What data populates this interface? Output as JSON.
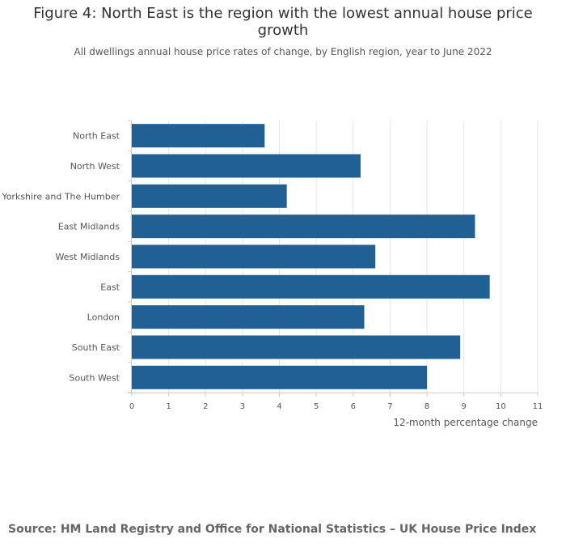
{
  "title": "Figure 4: North East is the region with the lowest annual house price growth",
  "subtitle": "All dwellings annual house price rates of change, by English region, year to June 2022",
  "source": "Source: HM Land Registry and Office for National Statistics – UK House Price Index",
  "colors": {
    "bar": "#206095",
    "grid": "#e6e6e6",
    "axis": "#cccccc",
    "text": "#555555"
  },
  "chart_data": {
    "type": "bar",
    "orientation": "horizontal",
    "categories": [
      "North East",
      "North West",
      "Yorkshire and The Humber",
      "East Midlands",
      "West Midlands",
      "East",
      "London",
      "South East",
      "South West"
    ],
    "values": [
      3.6,
      6.2,
      4.2,
      9.3,
      6.6,
      9.7,
      6.3,
      8.9,
      8.0
    ],
    "xlabel": "12-month percentage change",
    "ylabel": "",
    "xlim": [
      0,
      11
    ],
    "xticks": [
      "0",
      "1",
      "2",
      "3",
      "4",
      "5",
      "6",
      "7",
      "8",
      "9",
      "10",
      "11"
    ],
    "grid": true,
    "legend": "none"
  }
}
